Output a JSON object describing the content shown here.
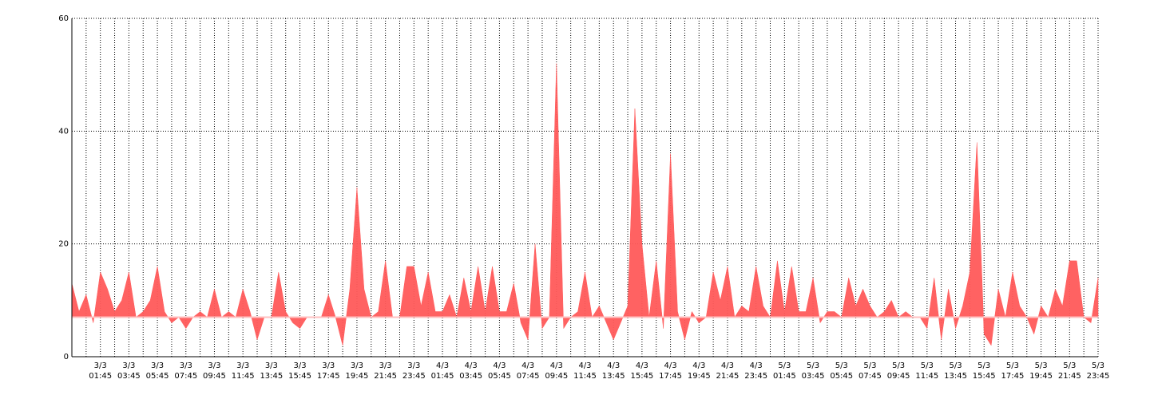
{
  "chart_data": {
    "type": "area",
    "color": "#ff5a5a",
    "baseline": 7,
    "baseline_color": "#ffc0c0",
    "ylim": [
      0,
      60
    ],
    "yticks": [
      0,
      20,
      40,
      60
    ],
    "grid": true,
    "categories": [
      null,
      null,
      null,
      null,
      [
        "3/3",
        "01:45"
      ],
      null,
      null,
      null,
      [
        "3/3",
        "03:45"
      ],
      null,
      null,
      null,
      [
        "3/3",
        "05:45"
      ],
      null,
      null,
      null,
      [
        "3/3",
        "07:45"
      ],
      null,
      null,
      null,
      [
        "3/3",
        "09:45"
      ],
      null,
      null,
      null,
      [
        "3/3",
        "11:45"
      ],
      null,
      null,
      null,
      [
        "3/3",
        "13:45"
      ],
      null,
      null,
      null,
      [
        "3/3",
        "15:45"
      ],
      null,
      null,
      null,
      [
        "3/3",
        "17:45"
      ],
      null,
      null,
      null,
      [
        "3/3",
        "19:45"
      ],
      null,
      null,
      null,
      [
        "3/3",
        "21:45"
      ],
      null,
      null,
      null,
      [
        "3/3",
        "23:45"
      ],
      null,
      null,
      null,
      [
        "4/3",
        "01:45"
      ],
      null,
      null,
      null,
      [
        "4/3",
        "03:45"
      ],
      null,
      null,
      null,
      [
        "4/3",
        "05:45"
      ],
      null,
      null,
      null,
      [
        "4/3",
        "07:45"
      ],
      null,
      null,
      null,
      [
        "4/3",
        "09:45"
      ],
      null,
      null,
      null,
      [
        "4/3",
        "11:45"
      ],
      null,
      null,
      null,
      [
        "4/3",
        "13:45"
      ],
      null,
      null,
      null,
      [
        "4/3",
        "15:45"
      ],
      null,
      null,
      null,
      [
        "4/3",
        "17:45"
      ],
      null,
      null,
      null,
      [
        "4/3",
        "19:45"
      ],
      null,
      null,
      null,
      [
        "4/3",
        "21:45"
      ],
      null,
      null,
      null,
      [
        "4/3",
        "23:45"
      ],
      null,
      null,
      null,
      [
        "5/3",
        "01:45"
      ],
      null,
      null,
      null,
      [
        "5/3",
        "03:45"
      ],
      null,
      null,
      null,
      [
        "5/3",
        "05:45"
      ],
      null,
      null,
      null,
      [
        "5/3",
        "07:45"
      ],
      null,
      null,
      null,
      [
        "5/3",
        "09:45"
      ],
      null,
      null,
      null,
      [
        "5/3",
        "11:45"
      ],
      null,
      null,
      null,
      [
        "5/3",
        "13:45"
      ],
      null,
      null,
      null,
      [
        "5/3",
        "15:45"
      ],
      null,
      null,
      null,
      [
        "5/3",
        "17:45"
      ],
      null,
      null,
      null,
      [
        "5/3",
        "19:45"
      ],
      null,
      null,
      null,
      [
        "5/3",
        "21:45"
      ],
      null,
      null,
      null,
      [
        "5/3",
        "23:45"
      ]
    ],
    "values": [
      13,
      8,
      11,
      6,
      15,
      12,
      8,
      10,
      15,
      7,
      8,
      10,
      16,
      8,
      6,
      7,
      5,
      7,
      8,
      7,
      12,
      7,
      8,
      7,
      12,
      8,
      3,
      7,
      7,
      15,
      8,
      6,
      5,
      7,
      7,
      7,
      11,
      7,
      2,
      12,
      30,
      12,
      7,
      8,
      17,
      7,
      7,
      16,
      16,
      9,
      15,
      8,
      8,
      11,
      7,
      14,
      8,
      16,
      8,
      16,
      8,
      8,
      13,
      6,
      3,
      20,
      5,
      7,
      52,
      5,
      7,
      8,
      15,
      7,
      9,
      6,
      3,
      6,
      9,
      44,
      20,
      7,
      17,
      5,
      36,
      8,
      3,
      8,
      6,
      7,
      15,
      10,
      16,
      7,
      9,
      8,
      16,
      9,
      7,
      17,
      8,
      16,
      8,
      8,
      14,
      6,
      8,
      8,
      7,
      14,
      9,
      12,
      9,
      7,
      8,
      10,
      7,
      8,
      7,
      7,
      5,
      14,
      3,
      12,
      5,
      9,
      15,
      38,
      4,
      2,
      12,
      7,
      15,
      9,
      7,
      4,
      9,
      7,
      12,
      9,
      17,
      17,
      7,
      6,
      14
    ]
  }
}
